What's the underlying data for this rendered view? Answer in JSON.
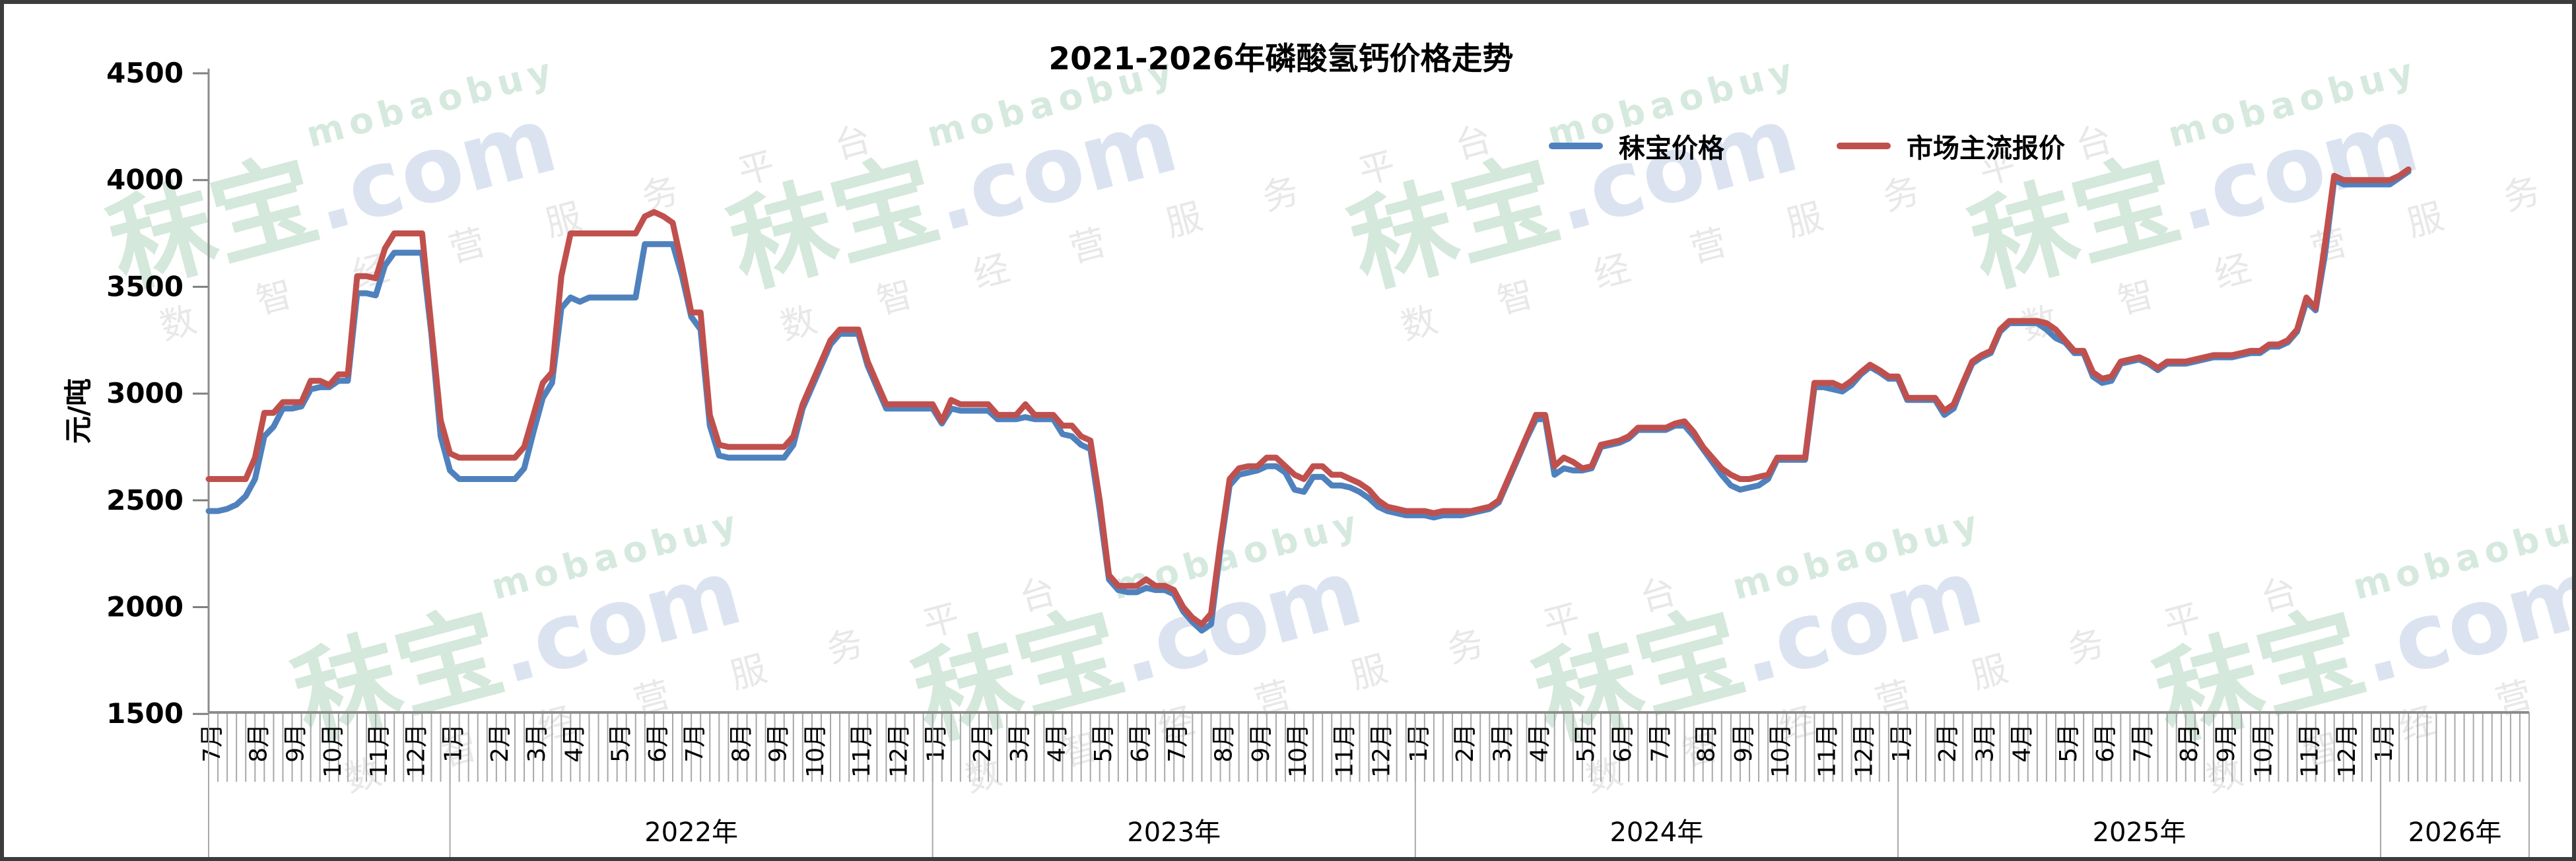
{
  "window": {
    "border_color": "#3c3c3c",
    "background": "#ffffff"
  },
  "title": "2021-2026年磷酸氢钙价格走势",
  "legend": [
    {
      "label": "秣宝价格",
      "color": "#4F81BD"
    },
    {
      "label": "市场主流报价",
      "color": "#C0504D"
    }
  ],
  "y_axis": {
    "title": "元/吨",
    "ticks": [
      4500,
      4000,
      3500,
      3000,
      2500,
      2000,
      1500
    ],
    "min": 1500,
    "max": 4500
  },
  "watermark": {
    "brand": "秣宝",
    "domain": ".com",
    "latin": "mobaobuy",
    "tagline": "数 智 经 营 服 务 平 台"
  },
  "chart_data": {
    "type": "line",
    "title": "2021-2026年磷酸氢钙价格走势",
    "ylabel": "元/吨",
    "ylim": [
      1500,
      4500
    ],
    "y_tick_step": 500,
    "grid": "off",
    "legend_position": "top-right",
    "x_granularity": "weekly",
    "total_weeks": 250,
    "month_labels": [
      "7月",
      "8月",
      "9月",
      "10月",
      "11月",
      "12月",
      "1月",
      "2月",
      "3月",
      "4月",
      "5月",
      "6月",
      "7月",
      "8月",
      "9月",
      "10月",
      "11月",
      "12月",
      "1月",
      "2月",
      "3月",
      "4月",
      "5月",
      "6月",
      "7月",
      "8月",
      "9月",
      "10月",
      "11月",
      "12月",
      "1月",
      "2月",
      "3月",
      "4月",
      "5月",
      "6月",
      "7月",
      "8月",
      "9月",
      "10月",
      "11月",
      "12月",
      "1月",
      "2月",
      "3月",
      "4月",
      "5月",
      "6月",
      "7月",
      "8月",
      "9月",
      "10月",
      "11月",
      "12月",
      "1月"
    ],
    "weeks_per_month": [
      5,
      4,
      4,
      5,
      4,
      4,
      5,
      4,
      4,
      5,
      4,
      4,
      5,
      4,
      4,
      5,
      4,
      4,
      5,
      4,
      4,
      5,
      4,
      4,
      5,
      4,
      4,
      5,
      4,
      4,
      5,
      4,
      4,
      5,
      4,
      4,
      5,
      4,
      4,
      5,
      4,
      4,
      5,
      4,
      4,
      5,
      4,
      4,
      5,
      4,
      4,
      5,
      4,
      4,
      5
    ],
    "year_boxes": [
      {
        "label": "",
        "start_week": 0,
        "end_week": 26
      },
      {
        "label": "2022年",
        "start_week": 26,
        "end_week": 78
      },
      {
        "label": "2023年",
        "start_week": 78,
        "end_week": 130
      },
      {
        "label": "2024年",
        "start_week": 130,
        "end_week": 182
      },
      {
        "label": "2025年",
        "start_week": 182,
        "end_week": 234
      },
      {
        "label": "2026年",
        "start_week": 234,
        "end_week": 250
      }
    ],
    "series": [
      {
        "name": "秣宝价格",
        "color": "#4F81BD",
        "values": [
          2450,
          2450,
          2460,
          2480,
          2520,
          2600,
          2800,
          2845,
          2930,
          2930,
          2940,
          3020,
          3030,
          3030,
          3060,
          3060,
          3470,
          3470,
          3460,
          3600,
          3660,
          3660,
          3660,
          3660,
          3280,
          2800,
          2640,
          2600,
          2600,
          2600,
          2600,
          2600,
          2600,
          2600,
          2650,
          2820,
          2980,
          3050,
          3400,
          3450,
          3430,
          3450,
          3450,
          3450,
          3450,
          3450,
          3450,
          3700,
          3700,
          3700,
          3700,
          3550,
          3360,
          3300,
          2850,
          2710,
          2700,
          2700,
          2700,
          2700,
          2700,
          2700,
          2700,
          2760,
          2930,
          3030,
          3130,
          3230,
          3280,
          3280,
          3280,
          3130,
          3030,
          2930,
          2930,
          2930,
          2930,
          2930,
          2930,
          2860,
          2930,
          2920,
          2920,
          2920,
          2920,
          2880,
          2880,
          2880,
          2890,
          2880,
          2880,
          2880,
          2810,
          2800,
          2760,
          2740,
          2450,
          2130,
          2080,
          2070,
          2070,
          2090,
          2080,
          2080,
          2060,
          1980,
          1930,
          1890,
          1920,
          2270,
          2570,
          2620,
          2630,
          2640,
          2660,
          2660,
          2630,
          2550,
          2540,
          2610,
          2610,
          2570,
          2570,
          2560,
          2540,
          2510,
          2470,
          2450,
          2440,
          2430,
          2430,
          2430,
          2420,
          2430,
          2430,
          2430,
          2440,
          2450,
          2460,
          2490,
          2590,
          2690,
          2790,
          2880,
          2880,
          2620,
          2650,
          2640,
          2640,
          2650,
          2750,
          2760,
          2770,
          2790,
          2830,
          2830,
          2830,
          2830,
          2850,
          2850,
          2800,
          2740,
          2680,
          2620,
          2570,
          2550,
          2560,
          2570,
          2600,
          2690,
          2690,
          2690,
          2690,
          3030,
          3030,
          3020,
          3010,
          3040,
          3090,
          3125,
          3100,
          3070,
          3070,
          2970,
          2970,
          2970,
          2970,
          2900,
          2930,
          3040,
          3140,
          3170,
          3190,
          3290,
          3330,
          3330,
          3330,
          3330,
          3300,
          3260,
          3240,
          3190,
          3190,
          3080,
          3050,
          3060,
          3140,
          3150,
          3160,
          3140,
          3110,
          3140,
          3140,
          3140,
          3150,
          3160,
          3170,
          3170,
          3170,
          3180,
          3190,
          3190,
          3220,
          3220,
          3240,
          3290,
          3430,
          3390,
          3650,
          4000,
          3980,
          3980,
          3980,
          3980,
          3980,
          3980,
          4010,
          4040
        ]
      },
      {
        "name": "市场主流报价",
        "color": "#C0504D",
        "values": [
          2600,
          2600,
          2600,
          2600,
          2600,
          2700,
          2910,
          2910,
          2960,
          2960,
          2960,
          3060,
          3060,
          3040,
          3090,
          3090,
          3550,
          3550,
          3540,
          3680,
          3750,
          3750,
          3750,
          3750,
          3310,
          2875,
          2720,
          2700,
          2700,
          2700,
          2700,
          2700,
          2700,
          2700,
          2750,
          2900,
          3050,
          3100,
          3550,
          3750,
          3750,
          3750,
          3750,
          3750,
          3750,
          3750,
          3750,
          3830,
          3850,
          3830,
          3800,
          3600,
          3380,
          3380,
          2900,
          2760,
          2750,
          2750,
          2750,
          2750,
          2750,
          2750,
          2750,
          2800,
          2950,
          3050,
          3150,
          3250,
          3300,
          3300,
          3300,
          3150,
          3050,
          2950,
          2950,
          2950,
          2950,
          2950,
          2950,
          2870,
          2970,
          2950,
          2950,
          2950,
          2950,
          2900,
          2900,
          2900,
          2950,
          2900,
          2900,
          2900,
          2850,
          2850,
          2800,
          2780,
          2500,
          2150,
          2100,
          2100,
          2100,
          2130,
          2100,
          2100,
          2080,
          2000,
          1950,
          1920,
          1970,
          2300,
          2600,
          2650,
          2660,
          2660,
          2700,
          2700,
          2660,
          2620,
          2600,
          2660,
          2660,
          2620,
          2620,
          2600,
          2580,
          2550,
          2500,
          2470,
          2460,
          2450,
          2450,
          2450,
          2440,
          2450,
          2450,
          2450,
          2450,
          2460,
          2470,
          2500,
          2600,
          2700,
          2800,
          2900,
          2900,
          2660,
          2700,
          2680,
          2650,
          2660,
          2760,
          2770,
          2780,
          2800,
          2840,
          2840,
          2840,
          2840,
          2860,
          2870,
          2820,
          2750,
          2700,
          2650,
          2620,
          2600,
          2600,
          2610,
          2620,
          2700,
          2700,
          2700,
          2700,
          3050,
          3050,
          3050,
          3030,
          3060,
          3100,
          3135,
          3110,
          3080,
          3080,
          2980,
          2980,
          2980,
          2980,
          2920,
          2950,
          3050,
          3150,
          3180,
          3200,
          3300,
          3340,
          3340,
          3340,
          3340,
          3330,
          3300,
          3250,
          3200,
          3200,
          3100,
          3070,
          3080,
          3150,
          3160,
          3170,
          3150,
          3120,
          3150,
          3150,
          3150,
          3160,
          3170,
          3180,
          3180,
          3180,
          3190,
          3200,
          3200,
          3230,
          3230,
          3250,
          3300,
          3450,
          3400,
          3700,
          4020,
          4000,
          4000,
          4000,
          4000,
          4000,
          4000,
          4020,
          4050
        ]
      }
    ]
  }
}
